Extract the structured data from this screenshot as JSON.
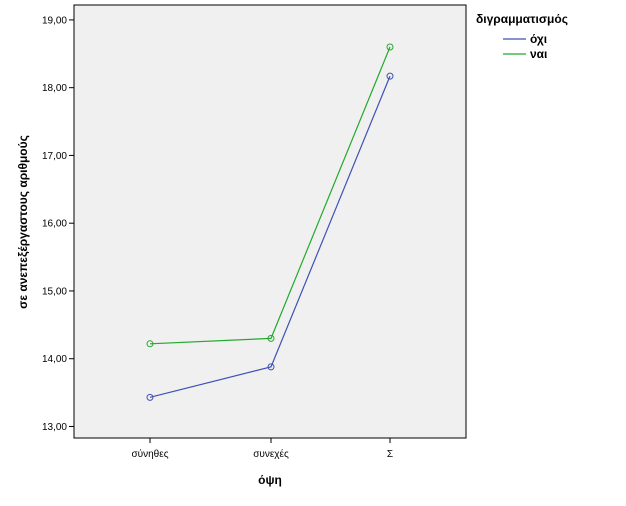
{
  "chart_data": {
    "type": "line",
    "categories": [
      "σύνηθες",
      "συνεχές",
      "Σ"
    ],
    "series": [
      {
        "name": "όχι",
        "values": [
          13.43,
          13.88,
          18.17
        ],
        "color": "#3f51b5"
      },
      {
        "name": "ναι",
        "values": [
          14.22,
          14.3,
          18.6
        ],
        "color": "#22aa2c"
      }
    ],
    "xlabel": "όψη",
    "ylabel": "σε ανεπεξέργαστους αριθμούς",
    "ylim": [
      12.83,
      19.22
    ],
    "yticks": [
      13,
      14,
      15,
      16,
      17,
      18,
      19
    ],
    "ytick_labels": [
      "13,00",
      "14,00",
      "15,00",
      "16,00",
      "17,00",
      "18,00",
      "19,00"
    ],
    "legend_title": "διγραμματισμός",
    "legend_position": "top-right",
    "plot_background": "#f0f0f0",
    "grid": false
  }
}
